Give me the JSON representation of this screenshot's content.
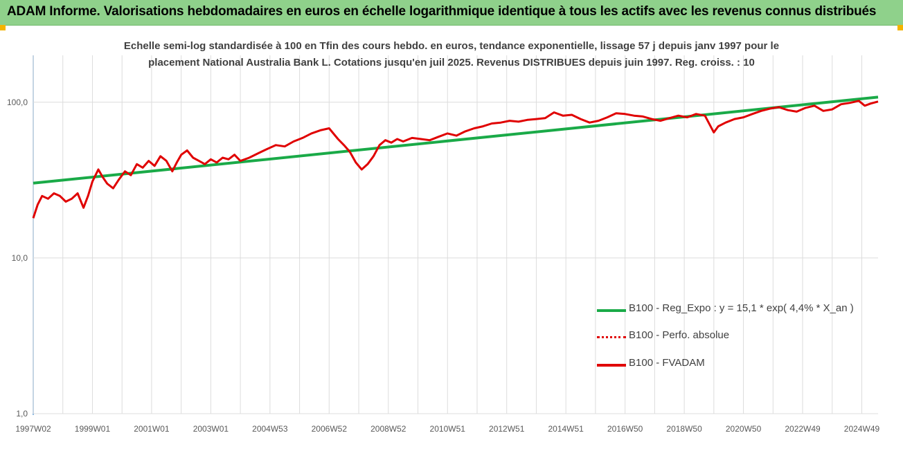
{
  "header": {
    "title": "ADAM Informe. Valorisations hebdomadaires en euros en échelle logarithmique identique à tous les actifs avec les revenus connus distribués"
  },
  "chart_data": {
    "type": "line",
    "title_line1": "Echelle semi-log standardisée à 100 en Tfin des cours hebdo. en euros, tendance exponentielle, lissage 57 j depuis janv 1997 pour le",
    "title_line2": "placement National Australia Bank L. Cotations jusqu'en juil 2025. Revenus DISTRIBUES depuis juin 1997. Reg. croiss. : 10",
    "y_scale": "log",
    "ylim": [
      1,
      200
    ],
    "y_ticks": [
      {
        "value": 1,
        "label": "1,0"
      },
      {
        "value": 10,
        "label": "10,0"
      },
      {
        "value": 100,
        "label": "100,0"
      }
    ],
    "x_range": [
      1997.0,
      2025.55
    ],
    "x_ticks": [
      {
        "x": 1997.0,
        "label": "1997W02"
      },
      {
        "x": 1999.0,
        "label": "1999W01"
      },
      {
        "x": 2001.0,
        "label": "2001W01"
      },
      {
        "x": 2003.0,
        "label": "2003W01"
      },
      {
        "x": 2005.0,
        "label": "2004W53"
      },
      {
        "x": 2007.0,
        "label": "2006W52"
      },
      {
        "x": 2009.0,
        "label": "2008W52"
      },
      {
        "x": 2011.0,
        "label": "2010W51"
      },
      {
        "x": 2013.0,
        "label": "2012W51"
      },
      {
        "x": 2015.0,
        "label": "2014W51"
      },
      {
        "x": 2017.0,
        "label": "2016W50"
      },
      {
        "x": 2019.0,
        "label": "2018W50"
      },
      {
        "x": 2021.0,
        "label": "2020W50"
      },
      {
        "x": 2023.0,
        "label": "2022W49"
      },
      {
        "x": 2025.0,
        "label": "2024W49"
      }
    ],
    "grid": "vertical and horizontal",
    "legend_position": "bottom-right",
    "series": [
      {
        "name": "B100 - Reg_Expo : y = 15,1 * exp( 4,4% *  X_an )",
        "color": "#1aaa48",
        "style": "solid",
        "x": [
          1997.0,
          2025.55
        ],
        "values": [
          30.2,
          107.8
        ]
      },
      {
        "name": "B100 - Perfo. absolue",
        "color": "#e00000",
        "style": "dotted",
        "x": [],
        "values": []
      },
      {
        "name": "B100 - FVADAM",
        "color": "#e00000",
        "style": "solid",
        "x": [
          1997.0,
          1997.15,
          1997.3,
          1997.5,
          1997.7,
          1997.9,
          1998.1,
          1998.3,
          1998.5,
          1998.7,
          1998.85,
          1999.0,
          1999.2,
          1999.35,
          1999.5,
          1999.7,
          1999.9,
          2000.1,
          2000.3,
          2000.5,
          2000.7,
          2000.9,
          2001.1,
          2001.3,
          2001.5,
          2001.7,
          2001.85,
          2002.0,
          2002.2,
          2002.4,
          2002.6,
          2002.8,
          2003.0,
          2003.2,
          2003.4,
          2003.6,
          2003.8,
          2004.0,
          2004.3,
          2004.6,
          2004.9,
          2005.2,
          2005.5,
          2005.8,
          2006.1,
          2006.4,
          2006.7,
          2007.0,
          2007.3,
          2007.5,
          2007.7,
          2007.9,
          2008.1,
          2008.3,
          2008.5,
          2008.7,
          2008.9,
          2009.1,
          2009.3,
          2009.5,
          2009.8,
          2010.1,
          2010.4,
          2010.7,
          2011.0,
          2011.3,
          2011.6,
          2011.9,
          2012.2,
          2012.5,
          2012.8,
          2013.1,
          2013.4,
          2013.7,
          2014.0,
          2014.3,
          2014.6,
          2014.9,
          2015.2,
          2015.5,
          2015.8,
          2016.1,
          2016.4,
          2016.7,
          2017.0,
          2017.3,
          2017.6,
          2017.9,
          2018.2,
          2018.5,
          2018.8,
          2019.1,
          2019.4,
          2019.7,
          2020.0,
          2020.15,
          2020.4,
          2020.7,
          2021.0,
          2021.3,
          2021.6,
          2021.9,
          2022.2,
          2022.5,
          2022.8,
          2023.1,
          2023.4,
          2023.7,
          2024.0,
          2024.3,
          2024.6,
          2024.9,
          2025.1,
          2025.3,
          2025.55
        ],
        "values": [
          18,
          22,
          25,
          24,
          26,
          25,
          23,
          24,
          26,
          21,
          25,
          31,
          37,
          33,
          30,
          28,
          32,
          36,
          34,
          40,
          38,
          42,
          39,
          45,
          42,
          36,
          41,
          46,
          49,
          44,
          42,
          40,
          43,
          41,
          44,
          43,
          46,
          42,
          44,
          47,
          50,
          53,
          52,
          56,
          59,
          63,
          66,
          68,
          58,
          53,
          48,
          41,
          37,
          40,
          45,
          53,
          57,
          55,
          58,
          56,
          59,
          58,
          57,
          60,
          63,
          61,
          65,
          68,
          70,
          73,
          74,
          76,
          75,
          77,
          78,
          79,
          86,
          82,
          83,
          78,
          74,
          76,
          80,
          85,
          84,
          82,
          81,
          78,
          76,
          79,
          82,
          80,
          84,
          82,
          64,
          70,
          74,
          78,
          80,
          84,
          88,
          91,
          93,
          89,
          87,
          92,
          95,
          88,
          90,
          97,
          99,
          102,
          95,
          98,
          101
        ]
      }
    ]
  }
}
